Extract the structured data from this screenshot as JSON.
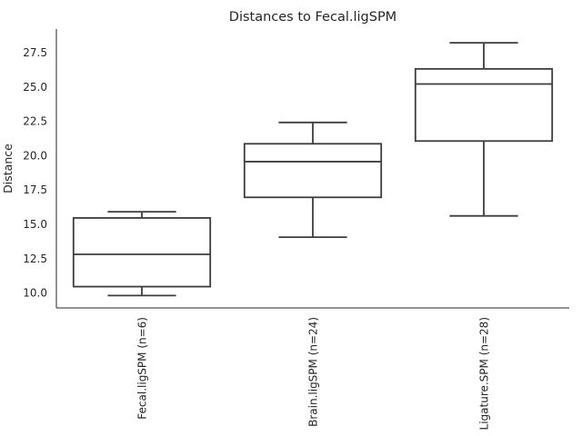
{
  "chart_data": {
    "type": "box",
    "title": "Distances to Fecal.ligSPM",
    "xlabel": "",
    "ylabel": "Distance",
    "ylim": [
      8.9,
      29.2
    ],
    "yticks": [
      10.0,
      12.5,
      15.0,
      17.5,
      20.0,
      22.5,
      25.0,
      27.5
    ],
    "ytick_labels": [
      "10.0",
      "12.5",
      "15.0",
      "17.5",
      "20.0",
      "22.5",
      "25.0",
      "27.5"
    ],
    "grid": false,
    "categories": [
      "Fecal.ligSPM (n=6)",
      "Brain.ligSPM (n=24)",
      "Ligature.SPM (n=28)"
    ],
    "boxes": [
      {
        "whisker_low": 9.8,
        "q1": 10.45,
        "median": 12.8,
        "q3": 15.45,
        "whisker_high": 15.9
      },
      {
        "whisker_low": 14.05,
        "q1": 16.95,
        "median": 19.55,
        "q3": 20.85,
        "whisker_high": 22.4
      },
      {
        "whisker_low": 15.6,
        "q1": 21.05,
        "median": 25.2,
        "q3": 26.3,
        "whisker_high": 28.2
      }
    ],
    "colors": {
      "box_edge": "#3d3d3d",
      "axis": "#262626",
      "text": "#262626"
    }
  }
}
